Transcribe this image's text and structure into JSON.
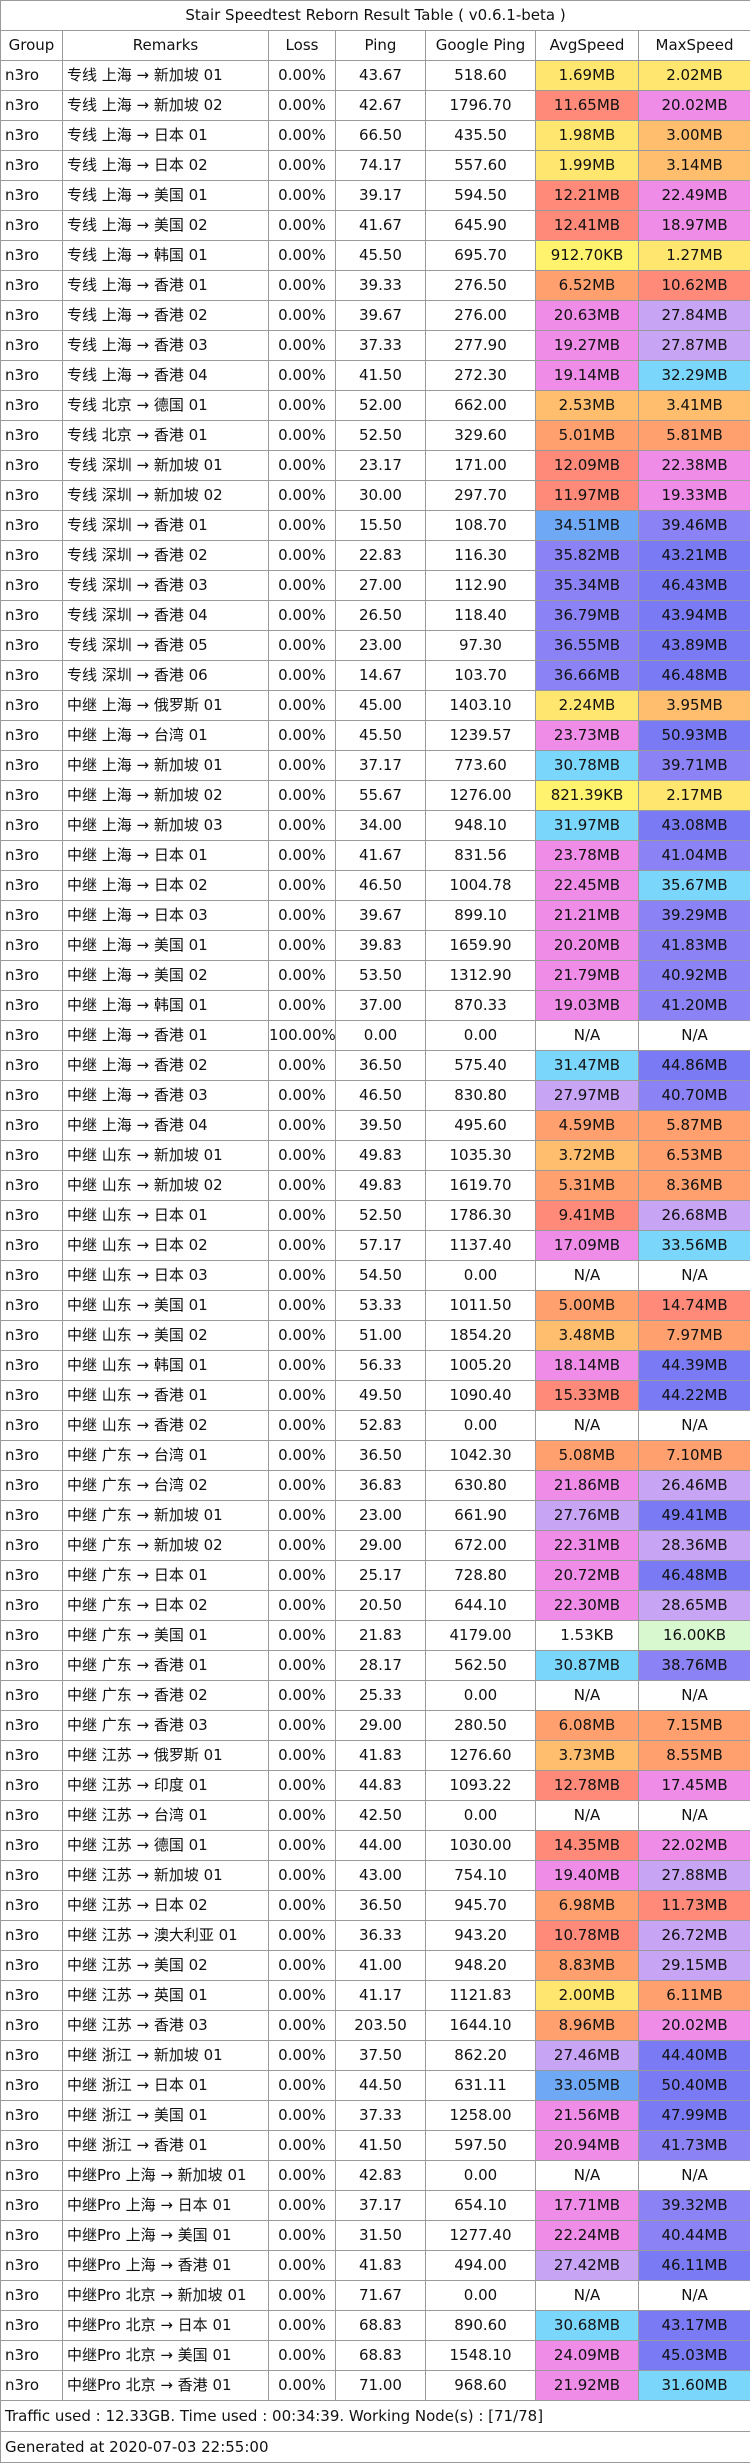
{
  "title": "Stair Speedtest Reborn Result Table ( v0.6.1-beta )",
  "headers": [
    "Group",
    "Remarks",
    "Loss",
    "Ping",
    "Google Ping",
    "AvgSpeed",
    "MaxSpeed"
  ],
  "rows": [
    [
      "n3ro",
      "专线 上海 → 新加坡 01",
      "0.00%",
      "43.67",
      "518.60",
      "1.69MB",
      "2.02MB",
      "#ffe66e",
      "#ffe66e"
    ],
    [
      "n3ro",
      "专线 上海 → 新加坡 02",
      "0.00%",
      "42.67",
      "1796.70",
      "11.65MB",
      "20.02MB",
      "#ff8a7a",
      "#ef8ce8"
    ],
    [
      "n3ro",
      "专线 上海 → 日本 01",
      "0.00%",
      "66.50",
      "435.50",
      "1.98MB",
      "3.00MB",
      "#ffe66e",
      "#ffbe6e"
    ],
    [
      "n3ro",
      "专线 上海 → 日本 02",
      "0.00%",
      "74.17",
      "557.60",
      "1.99MB",
      "3.14MB",
      "#ffe66e",
      "#ffbe6e"
    ],
    [
      "n3ro",
      "专线 上海 → 美国 01",
      "0.00%",
      "39.17",
      "594.50",
      "12.21MB",
      "22.49MB",
      "#ff8a7a",
      "#ef8ce8"
    ],
    [
      "n3ro",
      "专线 上海 → 美国 02",
      "0.00%",
      "41.67",
      "645.90",
      "12.41MB",
      "18.97MB",
      "#ff8a7a",
      "#ef8ce8"
    ],
    [
      "n3ro",
      "专线 上海 → 韩国 01",
      "0.00%",
      "45.50",
      "695.70",
      "912.70KB",
      "1.27MB",
      "#fff36e",
      "#ffe66e"
    ],
    [
      "n3ro",
      "专线 上海 → 香港 01",
      "0.00%",
      "39.33",
      "276.50",
      "6.52MB",
      "10.62MB",
      "#ffa06e",
      "#ff8a7a"
    ],
    [
      "n3ro",
      "专线 上海 → 香港 02",
      "0.00%",
      "39.67",
      "276.00",
      "20.63MB",
      "27.84MB",
      "#ef8ce8",
      "#c8a4f5"
    ],
    [
      "n3ro",
      "专线 上海 → 香港 03",
      "0.00%",
      "37.33",
      "277.90",
      "19.27MB",
      "27.87MB",
      "#ef8ce8",
      "#c8a4f5"
    ],
    [
      "n3ro",
      "专线 上海 → 香港 04",
      "0.00%",
      "41.50",
      "272.30",
      "19.14MB",
      "32.29MB",
      "#ef8ce8",
      "#7ad6fa"
    ],
    [
      "n3ro",
      "专线 北京 → 德国 01",
      "0.00%",
      "52.00",
      "662.00",
      "2.53MB",
      "3.41MB",
      "#ffbe6e",
      "#ffbe6e"
    ],
    [
      "n3ro",
      "专线 北京 → 香港 01",
      "0.00%",
      "52.50",
      "329.60",
      "5.01MB",
      "5.81MB",
      "#ffa06e",
      "#ffa06e"
    ],
    [
      "n3ro",
      "专线 深圳 → 新加坡 01",
      "0.00%",
      "23.17",
      "171.00",
      "12.09MB",
      "22.38MB",
      "#ff8a7a",
      "#ef8ce8"
    ],
    [
      "n3ro",
      "专线 深圳 → 新加坡 02",
      "0.00%",
      "30.00",
      "297.70",
      "11.97MB",
      "19.33MB",
      "#ff8a7a",
      "#ef8ce8"
    ],
    [
      "n3ro",
      "专线 深圳 → 香港 01",
      "0.00%",
      "15.50",
      "108.70",
      "34.51MB",
      "39.46MB",
      "#6fa8f5",
      "#8a82f5"
    ],
    [
      "n3ro",
      "专线 深圳 → 香港 02",
      "0.00%",
      "22.83",
      "116.30",
      "35.82MB",
      "43.21MB",
      "#8a82f5",
      "#7a7af5"
    ],
    [
      "n3ro",
      "专线 深圳 → 香港 03",
      "0.00%",
      "27.00",
      "112.90",
      "35.34MB",
      "46.43MB",
      "#8a82f5",
      "#7a7af5"
    ],
    [
      "n3ro",
      "专线 深圳 → 香港 04",
      "0.00%",
      "26.50",
      "118.40",
      "36.79MB",
      "43.94MB",
      "#8a82f5",
      "#7a7af5"
    ],
    [
      "n3ro",
      "专线 深圳 → 香港 05",
      "0.00%",
      "23.00",
      "97.30",
      "36.55MB",
      "43.89MB",
      "#8a82f5",
      "#7a7af5"
    ],
    [
      "n3ro",
      "专线 深圳 → 香港 06",
      "0.00%",
      "14.67",
      "103.70",
      "36.66MB",
      "46.48MB",
      "#8a82f5",
      "#7a7af5"
    ],
    [
      "n3ro",
      "中继 上海 → 俄罗斯 01",
      "0.00%",
      "45.00",
      "1403.10",
      "2.24MB",
      "3.95MB",
      "#ffe66e",
      "#ffbe6e"
    ],
    [
      "n3ro",
      "中继 上海 → 台湾 01",
      "0.00%",
      "45.50",
      "1239.57",
      "23.73MB",
      "50.93MB",
      "#ef8ce8",
      "#7a7af5"
    ],
    [
      "n3ro",
      "中继 上海 → 新加坡 01",
      "0.00%",
      "37.17",
      "773.60",
      "30.78MB",
      "39.71MB",
      "#7ad6fa",
      "#8a82f5"
    ],
    [
      "n3ro",
      "中继 上海 → 新加坡 02",
      "0.00%",
      "55.67",
      "1276.00",
      "821.39KB",
      "2.17MB",
      "#fff36e",
      "#ffe66e"
    ],
    [
      "n3ro",
      "中继 上海 → 新加坡 03",
      "0.00%",
      "34.00",
      "948.10",
      "31.97MB",
      "43.08MB",
      "#7ad6fa",
      "#7a7af5"
    ],
    [
      "n3ro",
      "中继 上海 → 日本 01",
      "0.00%",
      "41.67",
      "831.56",
      "23.78MB",
      "41.04MB",
      "#ef8ce8",
      "#8a82f5"
    ],
    [
      "n3ro",
      "中继 上海 → 日本 02",
      "0.00%",
      "46.50",
      "1004.78",
      "22.45MB",
      "35.67MB",
      "#ef8ce8",
      "#7ad6fa"
    ],
    [
      "n3ro",
      "中继 上海 → 日本 03",
      "0.00%",
      "39.67",
      "899.10",
      "21.21MB",
      "39.29MB",
      "#ef8ce8",
      "#8a82f5"
    ],
    [
      "n3ro",
      "中继 上海 → 美国 01",
      "0.00%",
      "39.83",
      "1659.90",
      "20.20MB",
      "41.83MB",
      "#ef8ce8",
      "#8a82f5"
    ],
    [
      "n3ro",
      "中继 上海 → 美国 02",
      "0.00%",
      "53.50",
      "1312.90",
      "21.79MB",
      "40.92MB",
      "#ef8ce8",
      "#8a82f5"
    ],
    [
      "n3ro",
      "中继 上海 → 韩国 01",
      "0.00%",
      "37.00",
      "870.33",
      "19.03MB",
      "41.20MB",
      "#ef8ce8",
      "#8a82f5"
    ],
    [
      "n3ro",
      "中继 上海 → 香港 01",
      "100.00%",
      "0.00",
      "0.00",
      "N/A",
      "N/A",
      "#ffffff",
      "#ffffff"
    ],
    [
      "n3ro",
      "中继 上海 → 香港 02",
      "0.00%",
      "36.50",
      "575.40",
      "31.47MB",
      "44.86MB",
      "#7ad6fa",
      "#7a7af5"
    ],
    [
      "n3ro",
      "中继 上海 → 香港 03",
      "0.00%",
      "46.50",
      "830.80",
      "27.97MB",
      "40.70MB",
      "#c8a4f5",
      "#8a82f5"
    ],
    [
      "n3ro",
      "中继 上海 → 香港 04",
      "0.00%",
      "39.50",
      "495.60",
      "4.59MB",
      "5.87MB",
      "#ffa06e",
      "#ffa06e"
    ],
    [
      "n3ro",
      "中继 山东 → 新加坡 01",
      "0.00%",
      "49.83",
      "1035.30",
      "3.72MB",
      "6.53MB",
      "#ffbe6e",
      "#ffa06e"
    ],
    [
      "n3ro",
      "中继 山东 → 新加坡 02",
      "0.00%",
      "49.83",
      "1619.70",
      "5.31MB",
      "8.36MB",
      "#ffa06e",
      "#ffa06e"
    ],
    [
      "n3ro",
      "中继 山东 → 日本 01",
      "0.00%",
      "52.50",
      "1786.30",
      "9.41MB",
      "26.68MB",
      "#ff8a7a",
      "#c8a4f5"
    ],
    [
      "n3ro",
      "中继 山东 → 日本 02",
      "0.00%",
      "57.17",
      "1137.40",
      "17.09MB",
      "33.56MB",
      "#ef8ce8",
      "#7ad6fa"
    ],
    [
      "n3ro",
      "中继 山东 → 日本 03",
      "0.00%",
      "54.50",
      "0.00",
      "N/A",
      "N/A",
      "#ffffff",
      "#ffffff"
    ],
    [
      "n3ro",
      "中继 山东 → 美国 01",
      "0.00%",
      "53.33",
      "1011.50",
      "5.00MB",
      "14.74MB",
      "#ffa06e",
      "#ff8a7a"
    ],
    [
      "n3ro",
      "中继 山东 → 美国 02",
      "0.00%",
      "51.00",
      "1854.20",
      "3.48MB",
      "7.97MB",
      "#ffbe6e",
      "#ffa06e"
    ],
    [
      "n3ro",
      "中继 山东 → 韩国 01",
      "0.00%",
      "56.33",
      "1005.20",
      "18.14MB",
      "44.39MB",
      "#ef8ce8",
      "#7a7af5"
    ],
    [
      "n3ro",
      "中继 山东 → 香港 01",
      "0.00%",
      "49.50",
      "1090.40",
      "15.33MB",
      "44.22MB",
      "#ff8a7a",
      "#7a7af5"
    ],
    [
      "n3ro",
      "中继 山东 → 香港 02",
      "0.00%",
      "52.83",
      "0.00",
      "N/A",
      "N/A",
      "#ffffff",
      "#ffffff"
    ],
    [
      "n3ro",
      "中继 广东 → 台湾 01",
      "0.00%",
      "36.50",
      "1042.30",
      "5.08MB",
      "7.10MB",
      "#ffa06e",
      "#ffa06e"
    ],
    [
      "n3ro",
      "中继 广东 → 台湾 02",
      "0.00%",
      "36.83",
      "630.80",
      "21.86MB",
      "26.46MB",
      "#ef8ce8",
      "#c8a4f5"
    ],
    [
      "n3ro",
      "中继 广东 → 新加坡 01",
      "0.00%",
      "23.00",
      "661.90",
      "27.76MB",
      "49.41MB",
      "#c8a4f5",
      "#7a7af5"
    ],
    [
      "n3ro",
      "中继 广东 → 新加坡 02",
      "0.00%",
      "29.00",
      "672.00",
      "22.31MB",
      "28.36MB",
      "#ef8ce8",
      "#c8a4f5"
    ],
    [
      "n3ro",
      "中继 广东 → 日本 01",
      "0.00%",
      "25.17",
      "728.80",
      "20.72MB",
      "46.48MB",
      "#ef8ce8",
      "#7a7af5"
    ],
    [
      "n3ro",
      "中继 广东 → 日本 02",
      "0.00%",
      "20.50",
      "644.10",
      "22.30MB",
      "28.65MB",
      "#ef8ce8",
      "#c8a4f5"
    ],
    [
      "n3ro",
      "中继 广东 → 美国 01",
      "0.00%",
      "21.83",
      "4179.00",
      "1.53KB",
      "16.00KB",
      "#ffffff",
      "#d8f8d0"
    ],
    [
      "n3ro",
      "中继 广东 → 香港 01",
      "0.00%",
      "28.17",
      "562.50",
      "30.87MB",
      "38.76MB",
      "#7ad6fa",
      "#8a82f5"
    ],
    [
      "n3ro",
      "中继 广东 → 香港 02",
      "0.00%",
      "25.33",
      "0.00",
      "N/A",
      "N/A",
      "#ffffff",
      "#ffffff"
    ],
    [
      "n3ro",
      "中继 广东 → 香港 03",
      "0.00%",
      "29.00",
      "280.50",
      "6.08MB",
      "7.15MB",
      "#ffa06e",
      "#ffa06e"
    ],
    [
      "n3ro",
      "中继 江苏 → 俄罗斯 01",
      "0.00%",
      "41.83",
      "1276.60",
      "3.73MB",
      "8.55MB",
      "#ffbe6e",
      "#ffa06e"
    ],
    [
      "n3ro",
      "中继 江苏 → 印度 01",
      "0.00%",
      "44.83",
      "1093.22",
      "12.78MB",
      "17.45MB",
      "#ff8a7a",
      "#ef8ce8"
    ],
    [
      "n3ro",
      "中继 江苏 → 台湾 01",
      "0.00%",
      "42.50",
      "0.00",
      "N/A",
      "N/A",
      "#ffffff",
      "#ffffff"
    ],
    [
      "n3ro",
      "中继 江苏 → 德国 01",
      "0.00%",
      "44.00",
      "1030.00",
      "14.35MB",
      "22.02MB",
      "#ff8a7a",
      "#ef8ce8"
    ],
    [
      "n3ro",
      "中继 江苏 → 新加坡 01",
      "0.00%",
      "43.00",
      "754.10",
      "19.40MB",
      "27.88MB",
      "#ef8ce8",
      "#c8a4f5"
    ],
    [
      "n3ro",
      "中继 江苏 → 日本 02",
      "0.00%",
      "36.50",
      "945.70",
      "6.98MB",
      "11.73MB",
      "#ffa06e",
      "#ff8a7a"
    ],
    [
      "n3ro",
      "中继 江苏 → 澳大利亚 01",
      "0.00%",
      "36.33",
      "943.20",
      "10.78MB",
      "26.72MB",
      "#ff8a7a",
      "#c8a4f5"
    ],
    [
      "n3ro",
      "中继 江苏 → 美国 02",
      "0.00%",
      "41.00",
      "948.20",
      "8.83MB",
      "29.15MB",
      "#ffa06e",
      "#c8a4f5"
    ],
    [
      "n3ro",
      "中继 江苏 → 英国 01",
      "0.00%",
      "41.17",
      "1121.83",
      "2.00MB",
      "6.11MB",
      "#ffe66e",
      "#ffa06e"
    ],
    [
      "n3ro",
      "中继 江苏 → 香港 03",
      "0.00%",
      "203.50",
      "1644.10",
      "8.96MB",
      "20.02MB",
      "#ffa06e",
      "#ef8ce8"
    ],
    [
      "n3ro",
      "中继 浙江 → 新加坡 01",
      "0.00%",
      "37.50",
      "862.20",
      "27.46MB",
      "44.40MB",
      "#c8a4f5",
      "#7a7af5"
    ],
    [
      "n3ro",
      "中继 浙江 → 日本 01",
      "0.00%",
      "44.50",
      "631.11",
      "33.05MB",
      "50.40MB",
      "#6fa8f5",
      "#7a7af5"
    ],
    [
      "n3ro",
      "中继 浙江 → 美国 01",
      "0.00%",
      "37.33",
      "1258.00",
      "21.56MB",
      "47.99MB",
      "#ef8ce8",
      "#7a7af5"
    ],
    [
      "n3ro",
      "中继 浙江 → 香港 01",
      "0.00%",
      "41.50",
      "597.50",
      "20.94MB",
      "41.73MB",
      "#ef8ce8",
      "#8a82f5"
    ],
    [
      "n3ro",
      "中继Pro 上海 → 新加坡 01",
      "0.00%",
      "42.83",
      "0.00",
      "N/A",
      "N/A",
      "#ffffff",
      "#ffffff"
    ],
    [
      "n3ro",
      "中继Pro 上海 → 日本 01",
      "0.00%",
      "37.17",
      "654.10",
      "17.71MB",
      "39.32MB",
      "#ef8ce8",
      "#8a82f5"
    ],
    [
      "n3ro",
      "中继Pro 上海 → 美国 01",
      "0.00%",
      "31.50",
      "1277.40",
      "22.24MB",
      "40.44MB",
      "#ef8ce8",
      "#8a82f5"
    ],
    [
      "n3ro",
      "中继Pro 上海 → 香港 01",
      "0.00%",
      "41.83",
      "494.00",
      "27.42MB",
      "46.11MB",
      "#c8a4f5",
      "#7a7af5"
    ],
    [
      "n3ro",
      "中继Pro 北京 → 新加坡 01",
      "0.00%",
      "71.67",
      "0.00",
      "N/A",
      "N/A",
      "#ffffff",
      "#ffffff"
    ],
    [
      "n3ro",
      "中继Pro 北京 → 日本 01",
      "0.00%",
      "68.83",
      "890.60",
      "30.68MB",
      "43.17MB",
      "#7ad6fa",
      "#7a7af5"
    ],
    [
      "n3ro",
      "中继Pro 北京 → 美国 01",
      "0.00%",
      "68.83",
      "1548.10",
      "24.09MB",
      "45.03MB",
      "#ef8ce8",
      "#7a7af5"
    ],
    [
      "n3ro",
      "中继Pro 北京 → 香港 01",
      "0.00%",
      "71.00",
      "968.60",
      "21.92MB",
      "31.60MB",
      "#ef8ce8",
      "#7ad6fa"
    ]
  ],
  "footer": {
    "traffic": "Traffic used : 12.33GB. Time used : 00:34:39. Working Node(s) : [71/78]",
    "generated": "Generated at 2020-07-03 22:55:00"
  }
}
